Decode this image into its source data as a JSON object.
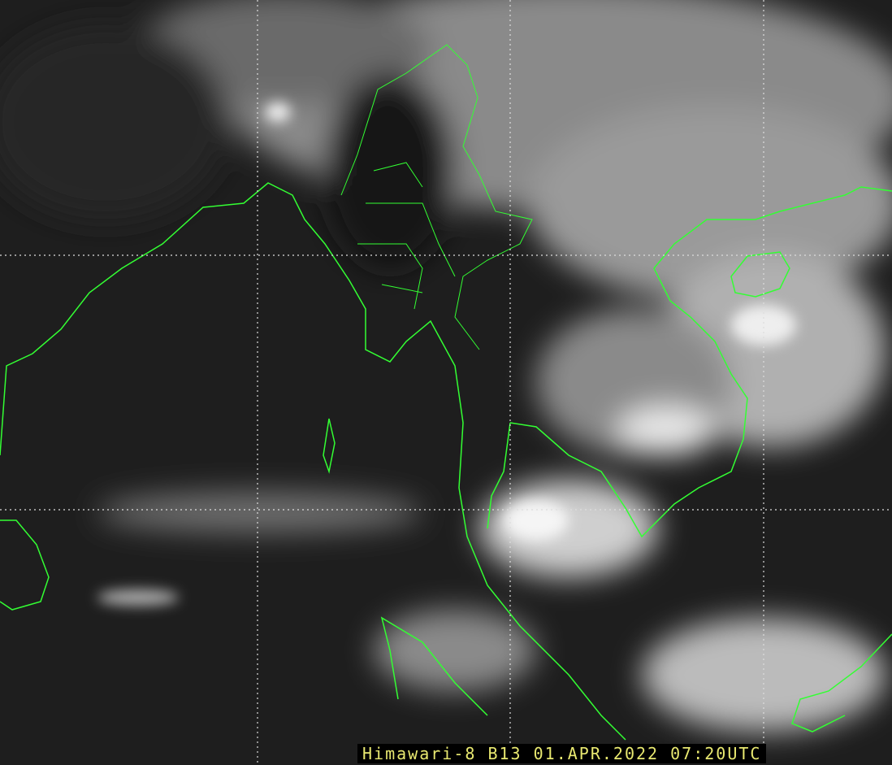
{
  "caption": "Himawari-8 B13 01.APR.2022 07:20UTC",
  "colors": {
    "coastline": "#33ff33",
    "grid": "#dddddd",
    "caption_text": "#e8e870",
    "caption_bg": "#000000"
  }
}
